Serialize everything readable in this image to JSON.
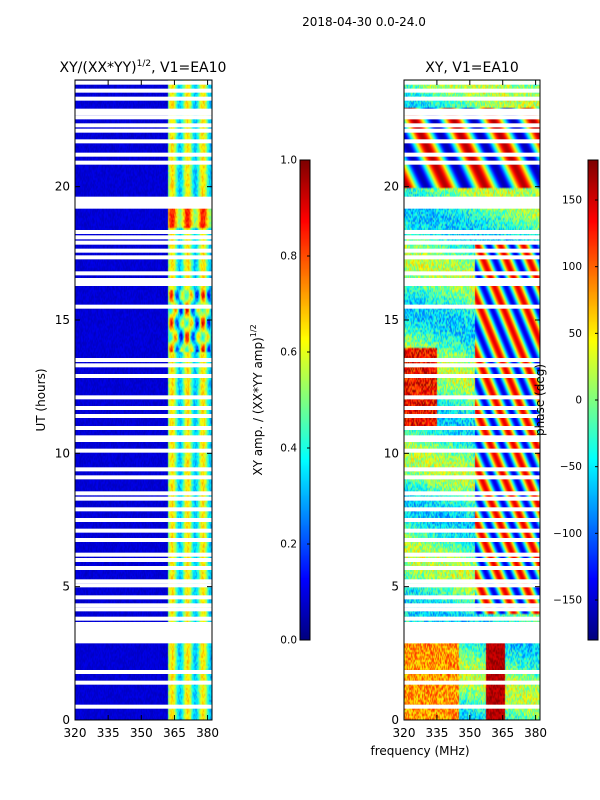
{
  "figure_title": "2018-04-30 0.0-24.0",
  "shared_xlabel": "frequency (MHz)",
  "chart_data": [
    {
      "type": "heatmap",
      "title_main": "XY/(XX*YY)",
      "title_exp": "1/2",
      "title_rest": ", V1=EA10",
      "ylabel": "UT (hours)",
      "xlim": [
        320,
        382
      ],
      "ylim": [
        0,
        24
      ],
      "xticks": [
        320,
        335,
        350,
        365,
        380
      ],
      "yticks": [
        0,
        5,
        10,
        15,
        20
      ],
      "colormap": "jet",
      "value_range": [
        0,
        1
      ]
    },
    {
      "type": "heatmap",
      "title": "XY, V1=EA10",
      "xlim": [
        320,
        382
      ],
      "ylim": [
        0,
        24
      ],
      "xticks": [
        320,
        335,
        350,
        365,
        380
      ],
      "yticks": [
        0,
        5,
        10,
        15,
        20
      ],
      "colormap": "jet",
      "value_range": [
        -180,
        180
      ]
    }
  ],
  "colorbar_amp": {
    "label_main": "XY amp. / (XX*YY amp)",
    "label_exp": "1/2",
    "range": [
      0,
      1
    ],
    "ticks": [
      "0.0",
      "0.2",
      "0.4",
      "0.6",
      "0.8",
      "1.0"
    ]
  },
  "colorbar_phase": {
    "label": "phase (deg)",
    "range": [
      -180,
      180
    ],
    "ticks": [
      "−150",
      "−100",
      "−50",
      "0",
      "50",
      "100",
      "150"
    ]
  },
  "flagged_hours": [
    23.9,
    23.6,
    23.3,
    22.85,
    22.75,
    22.6,
    22.3,
    22.1,
    21.7,
    21.2,
    20.9,
    19.55,
    19.45,
    19.35,
    19.25,
    18.3,
    18.1,
    17.9,
    17.6,
    17.35,
    16.75,
    16.5,
    16.35,
    15.5,
    13.5,
    13.3,
    12.9,
    12.1,
    11.7,
    11.4,
    10.95,
    10.6,
    10.5,
    10.1,
    9.4,
    9.1,
    8.5,
    8.3,
    7.9,
    7.5,
    7.1,
    6.75,
    6.2,
    6.0,
    5.7,
    5.2,
    5.05,
    4.6,
    4.3,
    4.15,
    3.8,
    3.6,
    3.45,
    3.3,
    3.15,
    3.05,
    2.95,
    1.8,
    1.4,
    0.5
  ]
}
